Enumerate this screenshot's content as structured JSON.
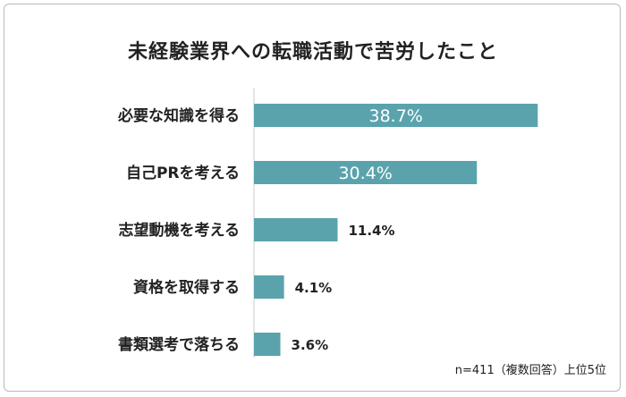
{
  "chart_data": {
    "type": "bar",
    "orientation": "horizontal",
    "title": "未経験業界への転職活動で苦労したこと",
    "categories": [
      "必要な知識を得る",
      "自己PRを考える",
      "志望動機を考える",
      "資格を取得する",
      "書類選考で落ちる"
    ],
    "values": [
      38.7,
      30.4,
      11.4,
      4.1,
      3.6
    ],
    "value_labels": [
      "38.7%",
      "30.4%",
      "11.4%",
      "4.1%",
      "3.6%"
    ],
    "unit": "%",
    "xlim": [
      0,
      40
    ],
    "grid": false,
    "note": "n=411（複数回答）上位5位",
    "colors": {
      "bar": "#5aa3ad",
      "label_inside": "#ffffff",
      "label_outside": "#222222",
      "axis": "#cccccc"
    }
  }
}
